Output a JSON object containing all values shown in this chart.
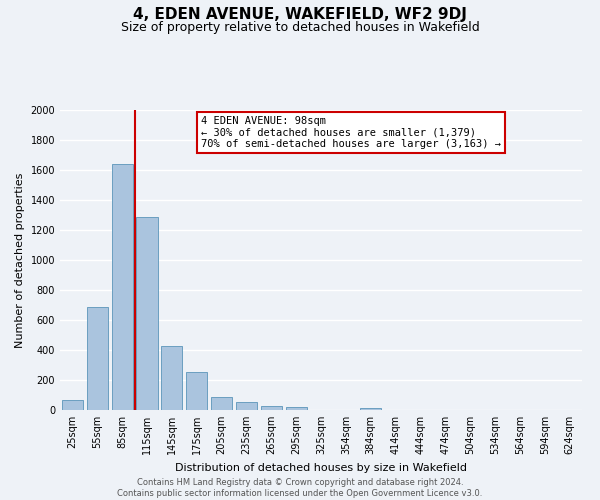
{
  "title": "4, EDEN AVENUE, WAKEFIELD, WF2 9DJ",
  "subtitle": "Size of property relative to detached houses in Wakefield",
  "xlabel": "Distribution of detached houses by size in Wakefield",
  "ylabel": "Number of detached properties",
  "categories": [
    "25sqm",
    "55sqm",
    "85sqm",
    "115sqm",
    "145sqm",
    "175sqm",
    "205sqm",
    "235sqm",
    "265sqm",
    "295sqm",
    "325sqm",
    "354sqm",
    "384sqm",
    "414sqm",
    "444sqm",
    "474sqm",
    "504sqm",
    "534sqm",
    "564sqm",
    "594sqm",
    "624sqm"
  ],
  "values": [
    65,
    690,
    1640,
    1290,
    430,
    255,
    90,
    55,
    30,
    20,
    0,
    0,
    15,
    0,
    0,
    0,
    0,
    0,
    0,
    0,
    0
  ],
  "bar_color": "#aac4de",
  "bar_edge_color": "#6a9fc0",
  "red_line_x": 2.5,
  "annotation_line1": "4 EDEN AVENUE: 98sqm",
  "annotation_line2": "← 30% of detached houses are smaller (1,379)",
  "annotation_line3": "70% of semi-detached houses are larger (3,163) →",
  "annotation_box_color": "#ffffff",
  "annotation_box_edge_color": "#cc0000",
  "red_line_color": "#cc0000",
  "ylim": [
    0,
    2000
  ],
  "yticks": [
    0,
    200,
    400,
    600,
    800,
    1000,
    1200,
    1400,
    1600,
    1800,
    2000
  ],
  "footer_line1": "Contains HM Land Registry data © Crown copyright and database right 2024.",
  "footer_line2": "Contains public sector information licensed under the Open Government Licence v3.0.",
  "bg_color": "#eef2f7",
  "grid_color": "#ffffff",
  "title_fontsize": 11,
  "subtitle_fontsize": 9,
  "ylabel_fontsize": 8,
  "xlabel_fontsize": 8,
  "tick_fontsize": 7,
  "annot_fontsize": 7.5,
  "footer_fontsize": 6
}
